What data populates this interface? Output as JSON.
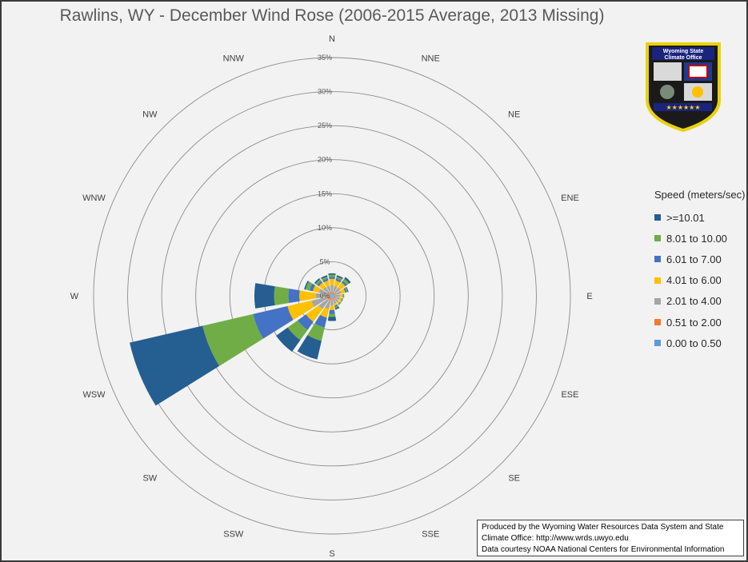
{
  "title": "Rawlins, WY - December Wind Rose (2006-2015 Average, 2013 Missing)",
  "chart_data": {
    "type": "wind-rose",
    "title": "Rawlins, WY - December Wind Rose (2006-2015 Average, 2013 Missing)",
    "directions": [
      "N",
      "NNE",
      "NE",
      "ENE",
      "E",
      "ESE",
      "SE",
      "SSE",
      "S",
      "SSW",
      "SW",
      "WSW",
      "W",
      "WNW",
      "NW",
      "NNW"
    ],
    "radial_ticks": [
      "0%",
      "5%",
      "10%",
      "15%",
      "20%",
      "25%",
      "30%",
      "35%"
    ],
    "rmax_percent": 35,
    "legend_title": "Speed (meters/sec)",
    "series": [
      {
        "name": "0.00 to 0.50",
        "color": "#5b9bd5",
        "values": [
          0.4,
          0.4,
          0.4,
          0.4,
          0.4,
          0.4,
          0.4,
          0.4,
          0.4,
          0.4,
          0.4,
          0.4,
          0.4,
          0.4,
          0.4,
          0.4
        ]
      },
      {
        "name": "0.51 to 2.00",
        "color": "#ed7d31",
        "values": [
          0.2,
          0.2,
          0.2,
          0.2,
          0.2,
          0.2,
          0.2,
          0.2,
          0.2,
          0.3,
          0.4,
          0.5,
          0.4,
          0.3,
          0.2,
          0.2
        ]
      },
      {
        "name": "2.01 to 4.00",
        "color": "#a5a5a5",
        "values": [
          1.0,
          0.9,
          0.9,
          0.8,
          0.6,
          0.6,
          0.6,
          0.6,
          0.8,
          1.3,
          1.6,
          2.2,
          1.6,
          1.3,
          1.0,
          0.9
        ]
      },
      {
        "name": "4.01 to 6.00",
        "color": "#ffc000",
        "values": [
          0.9,
          0.8,
          0.9,
          0.6,
          0.4,
          0.3,
          0.3,
          0.3,
          0.7,
          1.3,
          2.3,
          3.6,
          2.4,
          0.9,
          0.8,
          0.8
        ]
      },
      {
        "name": "6.01 to 7.00",
        "color": "#4472c4",
        "values": [
          0.3,
          0.3,
          0.3,
          0.2,
          0.1,
          0.1,
          0.1,
          0.2,
          0.6,
          1.5,
          1.5,
          5.2,
          1.6,
          0.5,
          0.3,
          0.3
        ]
      },
      {
        "name": "8.01 to 10.00",
        "color": "#70ad47",
        "values": [
          0.3,
          0.3,
          0.4,
          0.2,
          0.1,
          0.1,
          0.1,
          0.2,
          0.4,
          2.0,
          1.8,
          7.6,
          2.1,
          0.6,
          0.3,
          0.3
        ]
      },
      {
        "name": ">=10.01",
        "color": "#255e91",
        "values": [
          0.2,
          0.2,
          0.3,
          0.1,
          0.0,
          0.0,
          0.0,
          0.2,
          0.6,
          2.8,
          2.1,
          11.0,
          2.9,
          0.2,
          0.2,
          0.2
        ]
      }
    ],
    "grid": true,
    "legend_position": "right"
  },
  "credits": {
    "line1": "Produced by the Wyoming Water Resources Data System and State",
    "line2": "Climate Office: http://www.wrds.uwyo.edu",
    "line3": "Data courtesy NOAA National Centers for Environmental Information"
  },
  "logo": {
    "line1": "Wyoming State",
    "line2": "Climate Office"
  }
}
